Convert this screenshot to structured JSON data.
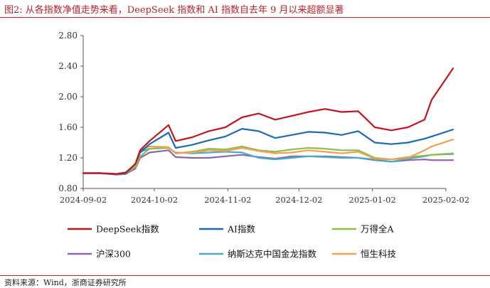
{
  "title": "图2:  从各指数净值走势来看，DeepSeek 指数和 AI 指数自去年 9 月以来超额显著",
  "source": "资料来源：Wind，浙商证券研究所",
  "chart_data": {
    "type": "line",
    "title": "",
    "xlabel": "",
    "ylabel": "",
    "ylim": [
      0.8,
      2.8
    ],
    "yticks": [
      "0.80",
      "1.20",
      "1.60",
      "2.00",
      "2.40",
      "2.80"
    ],
    "xticks": [
      "2024-09-02",
      "2024-10-02",
      "2024-11-02",
      "2024-12-02",
      "2025-01-02",
      "2025-02-02"
    ],
    "x_start": "2024-09-02",
    "x_end": "2025-02-02",
    "grid": false,
    "legend_position": "bottom",
    "x": [
      "2024-09-02",
      "2024-09-09",
      "2024-09-16",
      "2024-09-20",
      "2024-09-24",
      "2024-09-26",
      "2024-09-30",
      "2024-10-08",
      "2024-10-11",
      "2024-10-18",
      "2024-10-25",
      "2024-11-01",
      "2024-11-08",
      "2024-11-15",
      "2024-11-22",
      "2024-11-29",
      "2024-12-06",
      "2024-12-13",
      "2024-12-20",
      "2024-12-27",
      "2025-01-03",
      "2025-01-10",
      "2025-01-17",
      "2025-01-24",
      "2025-01-27",
      "2025-02-05"
    ],
    "series": [
      {
        "name": "DeepSeek指数",
        "color": "#c0171f",
        "values": [
          1.0,
          1.0,
          0.99,
          1.01,
          1.12,
          1.3,
          1.42,
          1.63,
          1.42,
          1.47,
          1.55,
          1.6,
          1.73,
          1.78,
          1.7,
          1.75,
          1.8,
          1.84,
          1.8,
          1.81,
          1.6,
          1.56,
          1.6,
          1.7,
          1.96,
          2.37
        ]
      },
      {
        "name": "AI指数",
        "color": "#1f69b0",
        "values": [
          1.0,
          1.0,
          0.99,
          1.0,
          1.12,
          1.27,
          1.38,
          1.53,
          1.33,
          1.37,
          1.43,
          1.48,
          1.58,
          1.55,
          1.46,
          1.5,
          1.54,
          1.53,
          1.5,
          1.55,
          1.4,
          1.38,
          1.4,
          1.45,
          1.48,
          1.57
        ]
      },
      {
        "name": "万得全A",
        "color": "#8fbc4c",
        "values": [
          1.0,
          1.0,
          0.99,
          1.0,
          1.08,
          1.22,
          1.32,
          1.33,
          1.26,
          1.28,
          1.32,
          1.31,
          1.35,
          1.3,
          1.28,
          1.31,
          1.33,
          1.32,
          1.3,
          1.3,
          1.2,
          1.18,
          1.21,
          1.23,
          1.24,
          1.26
        ]
      },
      {
        "name": "沪深300",
        "color": "#8a66a8",
        "values": [
          1.0,
          1.0,
          0.98,
          0.99,
          1.06,
          1.2,
          1.27,
          1.3,
          1.21,
          1.2,
          1.2,
          1.22,
          1.24,
          1.21,
          1.19,
          1.22,
          1.22,
          1.22,
          1.21,
          1.2,
          1.17,
          1.15,
          1.17,
          1.18,
          1.17,
          1.17
        ]
      },
      {
        "name": "纳斯达克中国金龙指数",
        "color": "#45adc4",
        "values": [
          1.0,
          1.0,
          0.99,
          1.0,
          1.12,
          1.28,
          1.32,
          1.33,
          1.27,
          1.26,
          1.27,
          1.28,
          1.27,
          1.2,
          1.18,
          1.2,
          1.22,
          1.21,
          1.2,
          1.2,
          1.18,
          1.15,
          1.19,
          1.22,
          1.24,
          1.25
        ]
      },
      {
        "name": "恒生科技",
        "color": "#f0a050",
        "values": [
          1.0,
          1.0,
          0.99,
          1.01,
          1.1,
          1.3,
          1.35,
          1.34,
          1.26,
          1.27,
          1.3,
          1.29,
          1.33,
          1.29,
          1.26,
          1.27,
          1.3,
          1.28,
          1.26,
          1.28,
          1.19,
          1.18,
          1.2,
          1.3,
          1.35,
          1.44
        ]
      }
    ]
  }
}
